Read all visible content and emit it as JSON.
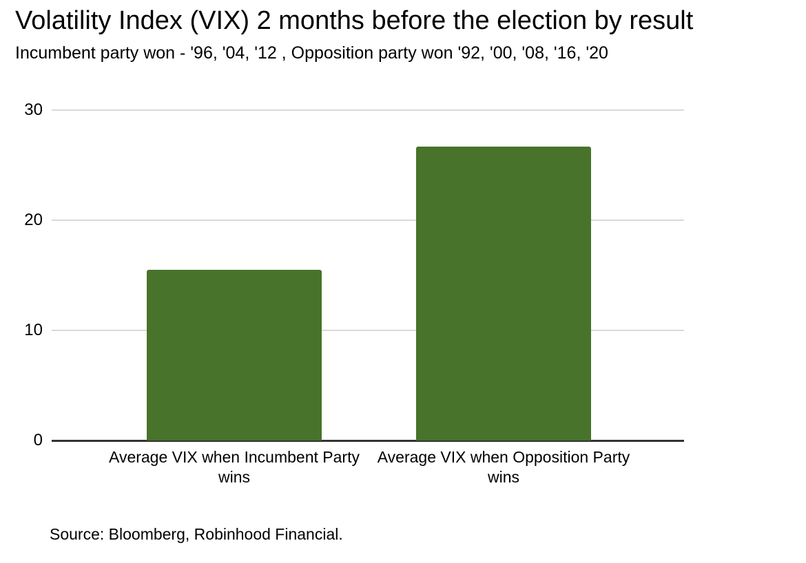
{
  "page": {
    "title": "Volatility Index (VIX) 2 months before the election by result",
    "subtitle": "Incumbent party won - '96, '04, '12 , Opposition party won '92, '00, '08, '16, '20",
    "source": "Source: Bloomberg, Robinhood Financial."
  },
  "colors": {
    "bar": "#47732b",
    "gridline": "#d9d9d9",
    "zero_line": "#333333",
    "text": "#000000",
    "background": "#ffffff"
  },
  "chart_data": {
    "type": "bar",
    "title": "Volatility Index (VIX) 2 months before the election by result",
    "subtitle": "Incumbent party won - '96, '04, '12 , Opposition party won '92, '00, '08, '16, '20",
    "categories": [
      "Average VIX when Incumbent Party wins",
      "Average VIX when Opposition Party wins"
    ],
    "values": [
      15.5,
      26.7
    ],
    "ylim": [
      0,
      30
    ],
    "yticks": [
      0,
      10,
      20,
      30
    ],
    "grid": "horizontal",
    "legend": "none",
    "bar_color": "#47732b",
    "annotation": "Source: Bloomberg, Robinhood Financial."
  }
}
